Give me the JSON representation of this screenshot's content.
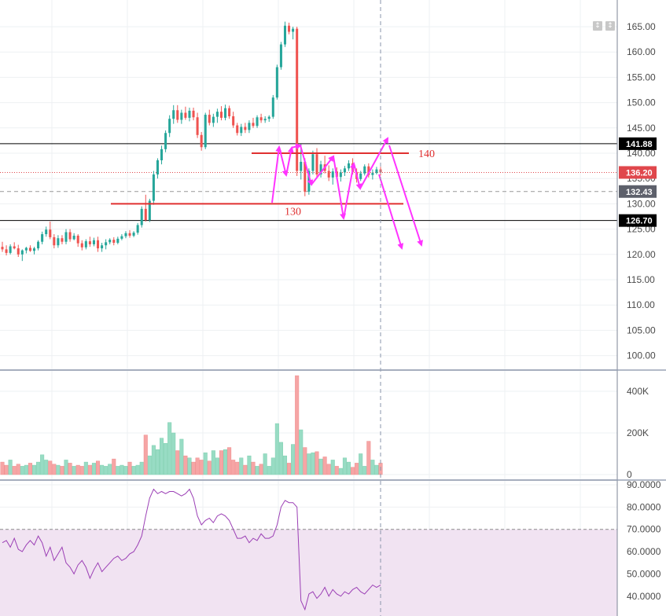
{
  "chart_data": [
    {
      "type": "candlestick",
      "panel": "price",
      "yticks": [
        "165.00",
        "160.00",
        "155.00",
        "150.00",
        "145.00",
        "140.00",
        "135.00",
        "130.00",
        "125.00",
        "120.00",
        "115.00",
        "110.00",
        "105.00",
        "100.00"
      ],
      "ylim": [
        96,
        168
      ],
      "candles": [
        [
          121.5,
          122.5,
          120.5,
          121.0
        ],
        [
          121.0,
          121.8,
          119.8,
          120.3
        ],
        [
          120.3,
          122.0,
          120.0,
          121.6
        ],
        [
          121.6,
          122.4,
          121.0,
          121.2
        ],
        [
          121.2,
          121.9,
          119.5,
          120.0
        ],
        [
          120.0,
          121.0,
          118.7,
          120.8
        ],
        [
          120.8,
          121.5,
          120.2,
          121.3
        ],
        [
          121.3,
          121.8,
          120.5,
          120.7
        ],
        [
          120.7,
          121.5,
          120.0,
          121.2
        ],
        [
          121.2,
          122.8,
          120.8,
          122.5
        ],
        [
          122.5,
          124.5,
          122.0,
          124.0
        ],
        [
          124.0,
          125.5,
          123.5,
          124.9
        ],
        [
          124.9,
          126.5,
          123.0,
          123.4
        ],
        [
          123.4,
          124.0,
          121.2,
          121.8
        ],
        [
          121.8,
          123.8,
          121.3,
          123.2
        ],
        [
          123.2,
          123.8,
          122.0,
          122.5
        ],
        [
          122.5,
          125.0,
          122.0,
          124.4
        ],
        [
          124.4,
          125.0,
          122.5,
          123.0
        ],
        [
          123.0,
          124.2,
          122.8,
          123.7
        ],
        [
          123.7,
          124.0,
          121.5,
          122.2
        ],
        [
          122.2,
          122.8,
          120.8,
          121.4
        ],
        [
          121.4,
          123.0,
          121.0,
          122.6
        ],
        [
          122.6,
          123.5,
          121.5,
          122.0
        ],
        [
          122.0,
          123.3,
          121.6,
          122.8
        ],
        [
          122.8,
          123.5,
          120.5,
          121.2
        ],
        [
          121.2,
          122.3,
          120.5,
          121.8
        ],
        [
          121.8,
          123.0,
          121.0,
          122.4
        ],
        [
          122.4,
          123.2,
          122.0,
          122.9
        ],
        [
          122.9,
          123.4,
          121.8,
          122.3
        ],
        [
          122.3,
          123.5,
          122.0,
          123.1
        ],
        [
          123.1,
          124.0,
          122.8,
          123.6
        ],
        [
          123.6,
          124.6,
          123.2,
          124.2
        ],
        [
          124.2,
          124.8,
          123.3,
          123.7
        ],
        [
          123.7,
          124.6,
          123.4,
          124.3
        ],
        [
          124.3,
          126.2,
          123.9,
          125.8
        ],
        [
          125.8,
          129.5,
          125.3,
          129.0
        ],
        [
          129.0,
          131.8,
          126.5,
          126.8
        ],
        [
          126.8,
          131.0,
          126.4,
          130.6
        ],
        [
          130.6,
          136.5,
          129.8,
          135.8
        ],
        [
          135.8,
          139.0,
          135.0,
          138.6
        ],
        [
          138.6,
          141.5,
          137.8,
          140.8
        ],
        [
          140.8,
          144.5,
          140.2,
          144.0
        ],
        [
          144.0,
          147.5,
          143.2,
          146.8
        ],
        [
          146.8,
          149.5,
          145.8,
          148.5
        ],
        [
          148.5,
          149.5,
          146.0,
          146.6
        ],
        [
          146.6,
          148.6,
          145.8,
          148.0
        ],
        [
          148.0,
          149.2,
          146.6,
          147.0
        ],
        [
          147.0,
          149.0,
          146.3,
          148.4
        ],
        [
          148.4,
          149.0,
          146.5,
          147.1
        ],
        [
          147.1,
          148.0,
          143.0,
          143.6
        ],
        [
          143.6,
          144.2,
          140.5,
          141.2
        ],
        [
          141.2,
          148.0,
          140.8,
          147.6
        ],
        [
          147.6,
          148.6,
          145.5,
          146.0
        ],
        [
          146.0,
          147.8,
          145.2,
          147.2
        ],
        [
          147.2,
          148.8,
          146.0,
          148.2
        ],
        [
          148.2,
          149.3,
          146.5,
          147.0
        ],
        [
          147.0,
          149.6,
          146.5,
          148.9
        ],
        [
          148.9,
          149.4,
          146.8,
          147.3
        ],
        [
          147.3,
          148.2,
          145.0,
          145.5
        ],
        [
          145.5,
          146.0,
          143.5,
          144.0
        ],
        [
          144.0,
          145.8,
          143.4,
          145.2
        ],
        [
          145.2,
          146.0,
          144.0,
          144.6
        ],
        [
          144.6,
          146.5,
          144.0,
          146.0
        ],
        [
          146.0,
          147.0,
          145.0,
          145.4
        ],
        [
          145.4,
          147.5,
          145.0,
          147.1
        ],
        [
          147.1,
          147.8,
          146.0,
          146.5
        ],
        [
          146.5,
          147.3,
          146.0,
          146.8
        ],
        [
          146.8,
          147.5,
          146.2,
          147.2
        ],
        [
          147.2,
          151.5,
          146.8,
          151.0
        ],
        [
          151.0,
          157.5,
          150.6,
          157.0
        ],
        [
          157.0,
          162.0,
          156.5,
          161.5
        ],
        [
          161.5,
          166.0,
          161.0,
          165.2
        ],
        [
          165.2,
          165.8,
          163.5,
          164.0
        ],
        [
          164.0,
          165.0,
          162.5,
          164.6
        ],
        [
          164.6,
          165.0,
          135.5,
          136.5
        ],
        [
          136.5,
          141.8,
          134.8,
          138.3
        ],
        [
          138.3,
          139.0,
          131.5,
          132.4
        ],
        [
          132.4,
          137.0,
          131.8,
          136.5
        ],
        [
          136.5,
          140.5,
          135.8,
          139.8
        ],
        [
          139.8,
          141.0,
          135.0,
          135.8
        ],
        [
          135.8,
          138.5,
          135.2,
          137.8
        ],
        [
          137.8,
          139.5,
          136.0,
          136.5
        ],
        [
          136.5,
          137.6,
          134.5,
          135.2
        ],
        [
          135.2,
          137.0,
          133.8,
          136.4
        ],
        [
          136.4,
          137.2,
          134.8,
          135.3
        ],
        [
          135.3,
          136.8,
          134.4,
          136.2
        ],
        [
          136.2,
          137.5,
          135.5,
          137.0
        ],
        [
          137.0,
          138.6,
          136.5,
          138.0
        ],
        [
          138.0,
          139.0,
          135.8,
          136.3
        ],
        [
          136.3,
          137.0,
          134.2,
          134.9
        ],
        [
          134.9,
          136.5,
          134.5,
          136.0
        ],
        [
          136.0,
          137.8,
          135.6,
          137.4
        ],
        [
          137.4,
          138.0,
          135.2,
          135.7
        ],
        [
          135.7,
          136.8,
          134.8,
          136.1
        ],
        [
          136.1,
          137.3,
          135.8,
          136.8
        ],
        [
          136.8,
          137.3,
          135.6,
          136.2
        ]
      ]
    },
    {
      "type": "bar",
      "panel": "volume",
      "yticks": [
        "400K",
        "200K",
        "0"
      ],
      "ylim": [
        0,
        470000
      ],
      "values": [
        60000,
        45000,
        70000,
        40000,
        50000,
        40000,
        45000,
        55000,
        45000,
        60000,
        95000,
        70000,
        65000,
        50000,
        45000,
        40000,
        70000,
        55000,
        40000,
        45000,
        40000,
        60000,
        45000,
        55000,
        65000,
        45000,
        40000,
        50000,
        75000,
        40000,
        45000,
        40000,
        60000,
        40000,
        45000,
        60000,
        190000,
        90000,
        140000,
        120000,
        175000,
        150000,
        250000,
        200000,
        115000,
        170000,
        90000,
        80000,
        60000,
        80000,
        70000,
        105000,
        65000,
        115000,
        80000,
        115000,
        120000,
        130000,
        70000,
        60000,
        80000,
        45000,
        90000,
        60000,
        40000,
        50000,
        100000,
        40000,
        80000,
        245000,
        155000,
        90000,
        55000,
        145000,
        475000,
        215000,
        130000,
        100000,
        105000,
        110000,
        75000,
        85000,
        50000,
        70000,
        40000,
        30000,
        80000,
        60000,
        35000,
        55000,
        100000,
        40000,
        160000,
        70000,
        45000,
        55000
      ]
    },
    {
      "type": "line",
      "panel": "rsi",
      "yticks": [
        "90.0000",
        "80.0000",
        "70.0000",
        "60.0000",
        "50.0000",
        "40.0000"
      ],
      "ylim": [
        33.7,
        91.4
      ],
      "band": [
        30,
        70
      ],
      "values": [
        64,
        65,
        62,
        66,
        61,
        60,
        63,
        65,
        63,
        67,
        64,
        58,
        62,
        56,
        59,
        62,
        55,
        53,
        50,
        54,
        56,
        53,
        48,
        52,
        55,
        51,
        53,
        55,
        57,
        58,
        56,
        57,
        59,
        60,
        63,
        67,
        76,
        84,
        88,
        86,
        87,
        86,
        87,
        87,
        86,
        85,
        86,
        88,
        84,
        76,
        72,
        74,
        75,
        73,
        76,
        77,
        76,
        74,
        70,
        66,
        66,
        67,
        64,
        66,
        65,
        68,
        66,
        66,
        67,
        72,
        80,
        83,
        82,
        82,
        80,
        38,
        34,
        41,
        42,
        39,
        41,
        44,
        40,
        43,
        41,
        40,
        42,
        41,
        43,
        44,
        42,
        41,
        43,
        45,
        44,
        45
      ]
    }
  ],
  "price_scale": {
    "hlines": [
      {
        "label": "141.88",
        "value": 141.88,
        "color": "#000000",
        "tag_bg": "#000000",
        "tag_fg": "#ffffff"
      },
      {
        "label": "126.70",
        "value": 126.7,
        "color": "#000000",
        "tag_bg": "#000000",
        "tag_fg": "#ffffff"
      }
    ],
    "last_price": {
      "label": "136.20",
      "value": 136.2,
      "color": "#e0474c",
      "tag_fg": "#ffffff"
    },
    "dashed_level": {
      "label": "132.43",
      "value": 132.43,
      "color": "#999999",
      "tag_bg": "#5d606b",
      "tag_fg": "#ffffff"
    }
  },
  "annotations": {
    "resistance": {
      "label": "140",
      "value": 140,
      "color": "#e03030"
    },
    "support": {
      "label": "130",
      "value": 130,
      "color": "#e03030"
    },
    "arrow_color": "#ff33ff"
  },
  "colors": {
    "up": "#26a69a",
    "down": "#ef5350",
    "vol_up": "#98dcc4",
    "vol_down": "#f6a5a5",
    "rsi_line": "#9b3fb5",
    "rsi_band": "#f1e3f2",
    "grid": "#eef0f3",
    "separator": "#9aa3b5"
  },
  "toolbar": {
    "btn_up": "↕",
    "btn_down": "↕"
  }
}
